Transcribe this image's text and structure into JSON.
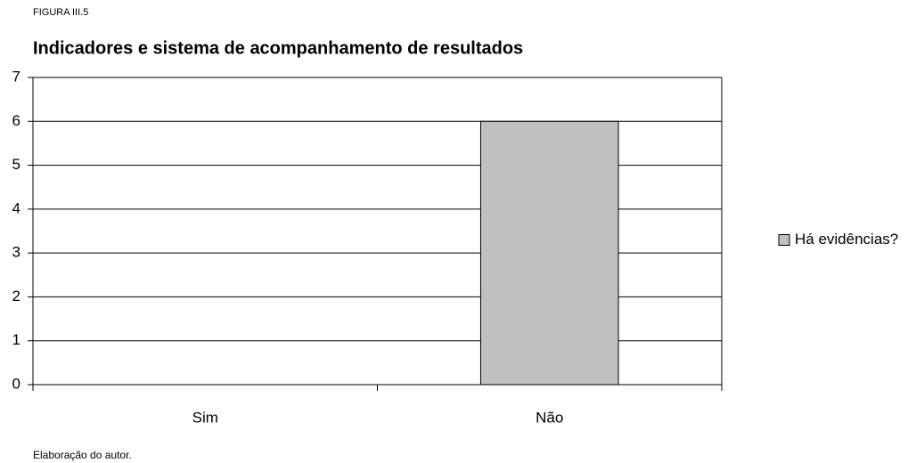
{
  "chart_data": {
    "type": "bar",
    "label": "FIGURA III.5",
    "title": "Indicadores e sistema de acompanhamento de resultados",
    "categories": [
      "Sim",
      "Não"
    ],
    "series": [
      {
        "name": "Há evidências?",
        "color": "#c0c0c0",
        "values": [
          0,
          6
        ]
      }
    ],
    "ylim": [
      0,
      7
    ],
    "yticks": [
      0,
      1,
      2,
      3,
      4,
      5,
      6,
      7
    ],
    "grid": true,
    "legend": "right",
    "footnote": "Elaboração do autor."
  }
}
